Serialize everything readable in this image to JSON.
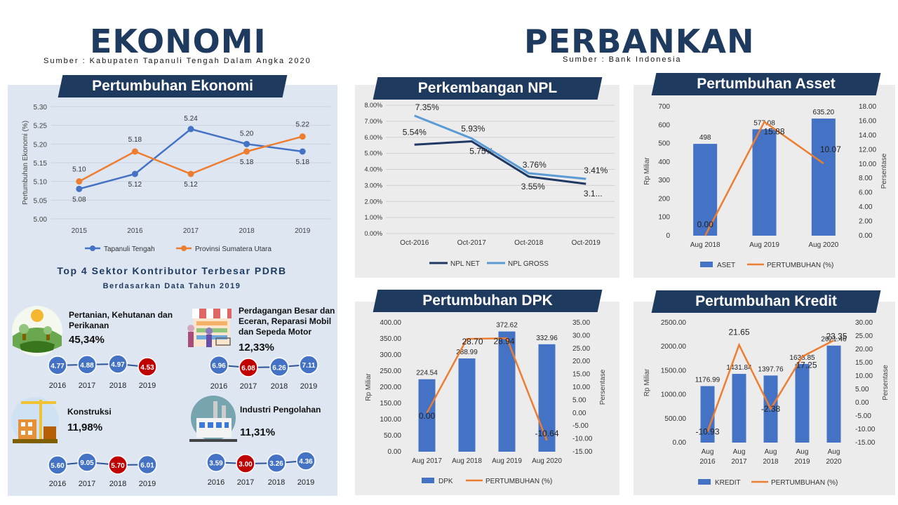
{
  "left": {
    "title": "EKONOMI",
    "source": "Sumber : Kabupaten Tapanuli Tengah Dalam Angka 2020",
    "banner": "Pertumbuhan Ekonomi",
    "sectors_title": "Top 4 Sektor Kontributor Terbesar PDRB",
    "sectors_subtitle": "Berdasarkan Data Tahun 2019",
    "sectors": [
      {
        "name": "Pertanian, Kehutanan dan Perikanan",
        "pct": "45,34%",
        "icon": "farm-icon",
        "years": [
          "2016",
          "2017",
          "2018",
          "2019"
        ],
        "values": [
          "4.77",
          "4.88",
          "4.97",
          "4.53"
        ],
        "highlight": [
          false,
          false,
          false,
          true
        ]
      },
      {
        "name": "Perdagangan Besar dan Eceran, Reparasi Mobil dan Sepeda Motor",
        "pct": "12,33%",
        "icon": "shop-icon",
        "years": [
          "2016",
          "2017",
          "2018",
          "2019"
        ],
        "values": [
          "6.96",
          "6.08",
          "6.26",
          "7.11"
        ],
        "highlight": [
          false,
          true,
          false,
          false
        ]
      },
      {
        "name": "Konstruksi",
        "pct": "11,98%",
        "icon": "construction-icon",
        "years": [
          "2016",
          "2017",
          "2018",
          "2019"
        ],
        "values": [
          "5.60",
          "9.05",
          "5.70",
          "6.01"
        ],
        "highlight": [
          false,
          false,
          true,
          false
        ]
      },
      {
        "name": "Industri Pengolahan",
        "pct": "11,31%",
        "icon": "factory-icon",
        "years": [
          "2016",
          "2017",
          "2018",
          "2019"
        ],
        "values": [
          "3.59",
          "3.00",
          "3.26",
          "4.36"
        ],
        "highlight": [
          false,
          true,
          false,
          false
        ]
      }
    ]
  },
  "right": {
    "title": "PERBANKAN",
    "source": "Sumber : Bank Indonesia"
  },
  "colors": {
    "navy": "#1f3a5f",
    "blue": "#4472c4",
    "orange": "#ed7d31",
    "navyLine": "#1f3864",
    "lightBlue": "#5b9bd5",
    "red": "#c00000"
  },
  "chart_data": [
    {
      "id": "growth",
      "type": "line",
      "title": "Pertumbuhan Ekonomi",
      "ylabel": "Pertumbuhan Ekonomi (%)",
      "categories": [
        "2015",
        "2016",
        "2017",
        "2018",
        "2019"
      ],
      "ylim": [
        5.0,
        5.3
      ],
      "yticks": [
        "5.00",
        "5.05",
        "5.10",
        "5.15",
        "5.20",
        "5.25",
        "5.30"
      ],
      "series": [
        {
          "name": "Tapanuli Tengah",
          "values": [
            5.08,
            5.12,
            5.24,
            5.2,
            5.18
          ],
          "labels": [
            "5.08",
            "5.12",
            "5.24",
            "5.20",
            "5.18"
          ]
        },
        {
          "name": "Provinsi Sumatera Utara",
          "values": [
            5.1,
            5.18,
            5.12,
            5.18,
            5.22
          ],
          "labels": [
            "5.10",
            "5.18",
            "5.12",
            "5.18",
            "5.22"
          ]
        }
      ]
    },
    {
      "id": "npl",
      "type": "line",
      "title": "Perkembangan NPL",
      "categories": [
        "Oct-2016",
        "Oct-2017",
        "Oct-2018",
        "Oct-2019"
      ],
      "ylim": [
        0,
        8
      ],
      "yticks": [
        "0.00%",
        "1.00%",
        "2.00%",
        "3.00%",
        "4.00%",
        "5.00%",
        "6.00%",
        "7.00%",
        "8.00%"
      ],
      "series": [
        {
          "name": "NPL NET",
          "values": [
            5.54,
            5.75,
            3.55,
            3.1
          ],
          "labels": [
            "5.54%",
            "5.75%",
            "3.55%",
            "3.1..."
          ]
        },
        {
          "name": "NPL GROSS",
          "values": [
            7.35,
            5.93,
            3.76,
            3.41
          ],
          "labels": [
            "7.35%",
            "5.93%",
            "3.76%",
            "3.41%"
          ]
        }
      ]
    },
    {
      "id": "asset",
      "type": "bar",
      "title": "Pertumbuhan Asset",
      "ylabel": "Rp Miliar",
      "y2label": "Persentase",
      "categories": [
        "Aug 2018",
        "Aug 2019",
        "Aug 2020"
      ],
      "ylim": [
        0,
        700
      ],
      "yticks": [
        "0",
        "100",
        "200",
        "300",
        "400",
        "500",
        "600",
        "700"
      ],
      "y2lim": [
        0,
        18
      ],
      "y2ticks": [
        "0.00",
        "2.00",
        "4.00",
        "6.00",
        "8.00",
        "10.00",
        "12.00",
        "14.00",
        "16.00",
        "18.00"
      ],
      "series": [
        {
          "name": "ASET",
          "values": [
            498,
            577.08,
            635.2
          ],
          "labels": [
            "498",
            "577.08",
            "635.20"
          ]
        },
        {
          "name": "PERTUMBUHAN (%)",
          "values": [
            0.0,
            15.88,
            10.07
          ],
          "labels": [
            "0.00",
            "15.88",
            "10.07"
          ]
        }
      ]
    },
    {
      "id": "dpk",
      "type": "bar",
      "title": "Pertumbuhan DPK",
      "ylabel": "Rp Miliar",
      "y2label": "Persentase",
      "categories": [
        "Aug 2017",
        "Aug 2018",
        "Aug 2019",
        "Aug 2020"
      ],
      "ylim": [
        0,
        400
      ],
      "yticks": [
        "0.00",
        "50.00",
        "100.00",
        "150.00",
        "200.00",
        "250.00",
        "300.00",
        "350.00",
        "400.00"
      ],
      "y2lim": [
        -15,
        35
      ],
      "y2ticks": [
        "-15.00",
        "-10.00",
        "-5.00",
        "0.00",
        "5.00",
        "10.00",
        "15.00",
        "20.00",
        "25.00",
        "30.00",
        "35.00"
      ],
      "series": [
        {
          "name": "DPK",
          "values": [
            224.54,
            288.99,
            372.62,
            332.96
          ],
          "labels": [
            "224.54",
            "288.99",
            "372.62",
            "332.96"
          ]
        },
        {
          "name": "PERTUMBUHAN (%)",
          "values": [
            0.0,
            28.7,
            28.94,
            -10.64
          ],
          "labels": [
            "0.00",
            "28.70",
            "28.94",
            "-10.64"
          ]
        }
      ]
    },
    {
      "id": "kredit",
      "type": "bar",
      "title": "Pertumbuhan Kredit",
      "ylabel": "Rp Miliar",
      "y2label": "Persentase",
      "categories": [
        "Aug 2016",
        "Aug 2017",
        "Aug 2018",
        "Aug 2019",
        "Aug 2020"
      ],
      "ylim": [
        0,
        2500
      ],
      "yticks": [
        "0.00",
        "500.00",
        "1000.00",
        "1500.00",
        "2000.00",
        "2500.00"
      ],
      "y2lim": [
        -15,
        30
      ],
      "y2ticks": [
        "-15.00",
        "-10.00",
        "-5.00",
        "0.00",
        "5.00",
        "10.00",
        "15.00",
        "20.00",
        "25.00",
        "30.00"
      ],
      "series": [
        {
          "name": "KREDIT",
          "values": [
            1176.99,
            1431.84,
            1397.76,
            1638.85,
            2021.46
          ],
          "labels": [
            "1176.99",
            "1431.84",
            "1397.76",
            "1638.85",
            "2021.46"
          ]
        },
        {
          "name": "PERTUMBUHAN (%)",
          "values": [
            -10.93,
            21.65,
            -2.38,
            17.25,
            23.35
          ],
          "labels": [
            "-10.93",
            "21.65",
            "-2.38",
            "17.25",
            "23.35"
          ]
        }
      ]
    }
  ]
}
